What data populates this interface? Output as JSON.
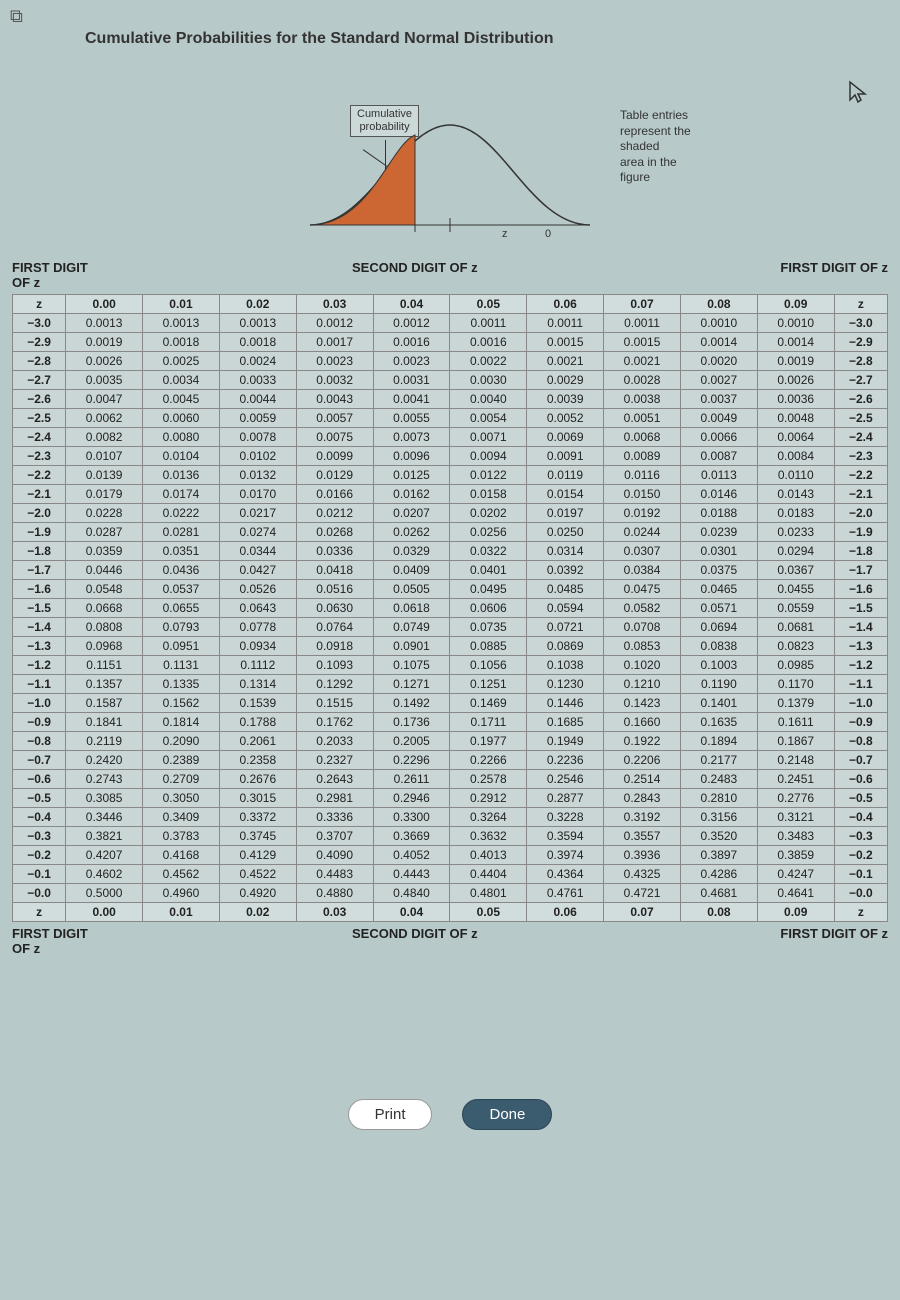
{
  "title": "Cumulative Probabilities for the Standard Normal Distribution",
  "diagram": {
    "cum_label_l1": "Cumulative",
    "cum_label_l2": "probability",
    "caption_l1": "Table entries",
    "caption_l2": "represent the shaded",
    "caption_l3": "area in the figure",
    "z_label": "z",
    "zero_label": "0",
    "curve_stroke": "#333333",
    "fill_color": "#cc6633",
    "axis_color": "#333333"
  },
  "headers": {
    "left": "FIRST DIGIT OF z",
    "center": "SECOND DIGIT OF z",
    "right": "FIRST DIGIT OF z"
  },
  "columns": [
    "z",
    "0.00",
    "0.01",
    "0.02",
    "0.03",
    "0.04",
    "0.05",
    "0.06",
    "0.07",
    "0.08",
    "0.09",
    "z"
  ],
  "rows": [
    {
      "z": "−3.0",
      "v": [
        "0.0013",
        "0.0013",
        "0.0013",
        "0.0012",
        "0.0012",
        "0.0011",
        "0.0011",
        "0.0011",
        "0.0010",
        "0.0010"
      ]
    },
    {
      "z": "−2.9",
      "v": [
        "0.0019",
        "0.0018",
        "0.0018",
        "0.0017",
        "0.0016",
        "0.0016",
        "0.0015",
        "0.0015",
        "0.0014",
        "0.0014"
      ]
    },
    {
      "z": "−2.8",
      "v": [
        "0.0026",
        "0.0025",
        "0.0024",
        "0.0023",
        "0.0023",
        "0.0022",
        "0.0021",
        "0.0021",
        "0.0020",
        "0.0019"
      ]
    },
    {
      "z": "−2.7",
      "v": [
        "0.0035",
        "0.0034",
        "0.0033",
        "0.0032",
        "0.0031",
        "0.0030",
        "0.0029",
        "0.0028",
        "0.0027",
        "0.0026"
      ]
    },
    {
      "z": "−2.6",
      "v": [
        "0.0047",
        "0.0045",
        "0.0044",
        "0.0043",
        "0.0041",
        "0.0040",
        "0.0039",
        "0.0038",
        "0.0037",
        "0.0036"
      ]
    },
    {
      "z": "−2.5",
      "v": [
        "0.0062",
        "0.0060",
        "0.0059",
        "0.0057",
        "0.0055",
        "0.0054",
        "0.0052",
        "0.0051",
        "0.0049",
        "0.0048"
      ]
    },
    {
      "z": "−2.4",
      "v": [
        "0.0082",
        "0.0080",
        "0.0078",
        "0.0075",
        "0.0073",
        "0.0071",
        "0.0069",
        "0.0068",
        "0.0066",
        "0.0064"
      ]
    },
    {
      "z": "−2.3",
      "v": [
        "0.0107",
        "0.0104",
        "0.0102",
        "0.0099",
        "0.0096",
        "0.0094",
        "0.0091",
        "0.0089",
        "0.0087",
        "0.0084"
      ]
    },
    {
      "z": "−2.2",
      "v": [
        "0.0139",
        "0.0136",
        "0.0132",
        "0.0129",
        "0.0125",
        "0.0122",
        "0.0119",
        "0.0116",
        "0.0113",
        "0.0110"
      ]
    },
    {
      "z": "−2.1",
      "v": [
        "0.0179",
        "0.0174",
        "0.0170",
        "0.0166",
        "0.0162",
        "0.0158",
        "0.0154",
        "0.0150",
        "0.0146",
        "0.0143"
      ]
    },
    {
      "z": "−2.0",
      "v": [
        "0.0228",
        "0.0222",
        "0.0217",
        "0.0212",
        "0.0207",
        "0.0202",
        "0.0197",
        "0.0192",
        "0.0188",
        "0.0183"
      ]
    },
    {
      "z": "−1.9",
      "v": [
        "0.0287",
        "0.0281",
        "0.0274",
        "0.0268",
        "0.0262",
        "0.0256",
        "0.0250",
        "0.0244",
        "0.0239",
        "0.0233"
      ]
    },
    {
      "z": "−1.8",
      "v": [
        "0.0359",
        "0.0351",
        "0.0344",
        "0.0336",
        "0.0329",
        "0.0322",
        "0.0314",
        "0.0307",
        "0.0301",
        "0.0294"
      ]
    },
    {
      "z": "−1.7",
      "v": [
        "0.0446",
        "0.0436",
        "0.0427",
        "0.0418",
        "0.0409",
        "0.0401",
        "0.0392",
        "0.0384",
        "0.0375",
        "0.0367"
      ]
    },
    {
      "z": "−1.6",
      "v": [
        "0.0548",
        "0.0537",
        "0.0526",
        "0.0516",
        "0.0505",
        "0.0495",
        "0.0485",
        "0.0475",
        "0.0465",
        "0.0455"
      ]
    },
    {
      "z": "−1.5",
      "v": [
        "0.0668",
        "0.0655",
        "0.0643",
        "0.0630",
        "0.0618",
        "0.0606",
        "0.0594",
        "0.0582",
        "0.0571",
        "0.0559"
      ]
    },
    {
      "z": "−1.4",
      "v": [
        "0.0808",
        "0.0793",
        "0.0778",
        "0.0764",
        "0.0749",
        "0.0735",
        "0.0721",
        "0.0708",
        "0.0694",
        "0.0681"
      ]
    },
    {
      "z": "−1.3",
      "v": [
        "0.0968",
        "0.0951",
        "0.0934",
        "0.0918",
        "0.0901",
        "0.0885",
        "0.0869",
        "0.0853",
        "0.0838",
        "0.0823"
      ]
    },
    {
      "z": "−1.2",
      "v": [
        "0.1151",
        "0.1131",
        "0.1112",
        "0.1093",
        "0.1075",
        "0.1056",
        "0.1038",
        "0.1020",
        "0.1003",
        "0.0985"
      ]
    },
    {
      "z": "−1.1",
      "v": [
        "0.1357",
        "0.1335",
        "0.1314",
        "0.1292",
        "0.1271",
        "0.1251",
        "0.1230",
        "0.1210",
        "0.1190",
        "0.1170"
      ]
    },
    {
      "z": "−1.0",
      "v": [
        "0.1587",
        "0.1562",
        "0.1539",
        "0.1515",
        "0.1492",
        "0.1469",
        "0.1446",
        "0.1423",
        "0.1401",
        "0.1379"
      ]
    },
    {
      "z": "−0.9",
      "v": [
        "0.1841",
        "0.1814",
        "0.1788",
        "0.1762",
        "0.1736",
        "0.1711",
        "0.1685",
        "0.1660",
        "0.1635",
        "0.1611"
      ]
    },
    {
      "z": "−0.8",
      "v": [
        "0.2119",
        "0.2090",
        "0.2061",
        "0.2033",
        "0.2005",
        "0.1977",
        "0.1949",
        "0.1922",
        "0.1894",
        "0.1867"
      ]
    },
    {
      "z": "−0.7",
      "v": [
        "0.2420",
        "0.2389",
        "0.2358",
        "0.2327",
        "0.2296",
        "0.2266",
        "0.2236",
        "0.2206",
        "0.2177",
        "0.2148"
      ]
    },
    {
      "z": "−0.6",
      "v": [
        "0.2743",
        "0.2709",
        "0.2676",
        "0.2643",
        "0.2611",
        "0.2578",
        "0.2546",
        "0.2514",
        "0.2483",
        "0.2451"
      ]
    },
    {
      "z": "−0.5",
      "v": [
        "0.3085",
        "0.3050",
        "0.3015",
        "0.2981",
        "0.2946",
        "0.2912",
        "0.2877",
        "0.2843",
        "0.2810",
        "0.2776"
      ]
    },
    {
      "z": "−0.4",
      "v": [
        "0.3446",
        "0.3409",
        "0.3372",
        "0.3336",
        "0.3300",
        "0.3264",
        "0.3228",
        "0.3192",
        "0.3156",
        "0.3121"
      ]
    },
    {
      "z": "−0.3",
      "v": [
        "0.3821",
        "0.3783",
        "0.3745",
        "0.3707",
        "0.3669",
        "0.3632",
        "0.3594",
        "0.3557",
        "0.3520",
        "0.3483"
      ]
    },
    {
      "z": "−0.2",
      "v": [
        "0.4207",
        "0.4168",
        "0.4129",
        "0.4090",
        "0.4052",
        "0.4013",
        "0.3974",
        "0.3936",
        "0.3897",
        "0.3859"
      ]
    },
    {
      "z": "−0.1",
      "v": [
        "0.4602",
        "0.4562",
        "0.4522",
        "0.4483",
        "0.4443",
        "0.4404",
        "0.4364",
        "0.4325",
        "0.4286",
        "0.4247"
      ]
    },
    {
      "z": "−0.0",
      "v": [
        "0.5000",
        "0.4960",
        "0.4920",
        "0.4880",
        "0.4840",
        "0.4801",
        "0.4761",
        "0.4721",
        "0.4681",
        "0.4641"
      ]
    }
  ],
  "buttons": {
    "print": "Print",
    "done": "Done"
  },
  "colors": {
    "background": "#b8c9c9",
    "grid": "#888888",
    "done_bg": "#3b5b6f",
    "done_fg": "#ffffff",
    "print_bg": "#ffffff"
  }
}
